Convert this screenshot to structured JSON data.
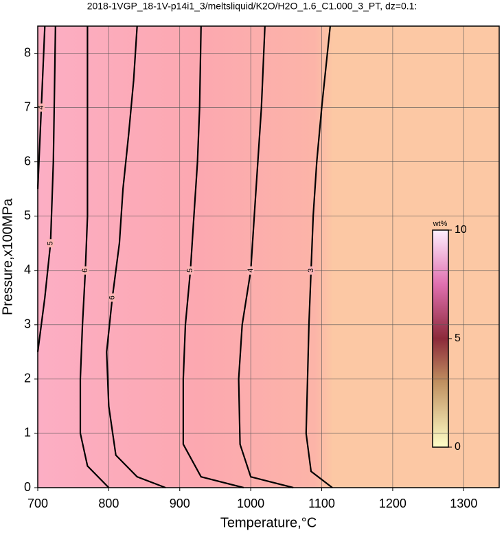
{
  "chart_data": {
    "type": "contour",
    "title": "2018-1VGP_18-1V-p14i1_3/meltsliquid/K2O/H2O_1.6_C1.000_3_PT, dz=0.1:",
    "x_label": "Temperature,°C",
    "y_label": "Pressure,x100MPa",
    "xlim": [
      700,
      1350
    ],
    "ylim": [
      0,
      8.5
    ],
    "xticks": [
      700,
      800,
      900,
      1000,
      1100,
      1200,
      1300
    ],
    "yticks": [
      0,
      1,
      2,
      3,
      4,
      5,
      6,
      7,
      8
    ],
    "grid": true,
    "series": [
      {
        "name": "4",
        "color": "#000000",
        "x": [
          700,
          705,
          710
        ],
        "y": [
          5.5,
          7,
          8.5
        ]
      },
      {
        "name": "5",
        "color": "#000000",
        "x": [
          700,
          710,
          718,
          722,
          725
        ],
        "y": [
          2.5,
          3.5,
          4.5,
          6,
          8.5
        ]
      },
      {
        "name": "6",
        "color": "#000000",
        "x": [
          800,
          770,
          760,
          760,
          763,
          767,
          770,
          770,
          770,
          770
        ],
        "y": [
          0,
          0.4,
          1,
          2,
          3,
          4,
          5,
          6,
          7,
          8.5
        ]
      },
      {
        "name": "6",
        "color": "#000000",
        "x": [
          880,
          840,
          810,
          800,
          797,
          805,
          815,
          820,
          828,
          835,
          840
        ],
        "y": [
          0,
          0.2,
          0.6,
          1.5,
          2.5,
          3.5,
          4.5,
          5.5,
          6.5,
          7.5,
          8.5
        ]
      },
      {
        "name": "5",
        "color": "#000000",
        "x": [
          990,
          930,
          905,
          905,
          908,
          915,
          920,
          925,
          928,
          930
        ],
        "y": [
          0,
          0.2,
          0.8,
          2,
          3,
          4,
          5,
          6,
          7,
          8.5
        ]
      },
      {
        "name": "4",
        "color": "#000000",
        "x": [
          1060,
          1000,
          985,
          983,
          988,
          1000,
          1005,
          1010,
          1015,
          1020
        ],
        "y": [
          0,
          0.2,
          0.8,
          2,
          3,
          4,
          5,
          6,
          7,
          8.5
        ]
      },
      {
        "name": "3",
        "color": "#000000",
        "x": [
          1115,
          1085,
          1078,
          1080,
          1082,
          1085,
          1088,
          1093,
          1100,
          1112
        ],
        "y": [
          0,
          0.3,
          1,
          2,
          3,
          4,
          5,
          6,
          7,
          8.5
        ]
      }
    ],
    "colorbar": {
      "label": "wt%",
      "lim": [
        0,
        10
      ],
      "ticks": [
        0,
        5,
        10
      ]
    }
  }
}
